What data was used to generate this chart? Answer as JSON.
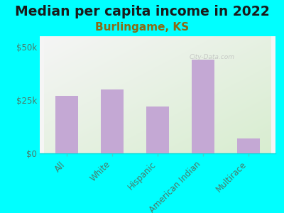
{
  "title": "Median per capita income in 2022",
  "subtitle": "Burlingame, KS",
  "categories": [
    "All",
    "White",
    "Hispanic",
    "American Indian",
    "Multirace"
  ],
  "values": [
    27000,
    30000,
    22000,
    44000,
    7000
  ],
  "bar_color": "#C4A8D4",
  "background_color": "#00FFFF",
  "chart_bg_color_top_left": "#F5F5F5",
  "chart_bg_color_bottom_right": "#D8EDD0",
  "ylim": [
    0,
    55000
  ],
  "yticks": [
    0,
    25000,
    50000
  ],
  "ytick_labels": [
    "$0",
    "$25k",
    "$50k"
  ],
  "title_fontsize": 13.5,
  "subtitle_fontsize": 11,
  "subtitle_color": "#8B6914",
  "title_color": "#1a1a1a",
  "tick_label_color": "#4a7a6a",
  "watermark": "City-Data.com",
  "watermark_color": "#BBBBBB",
  "axis_label_fontsize": 8.5
}
